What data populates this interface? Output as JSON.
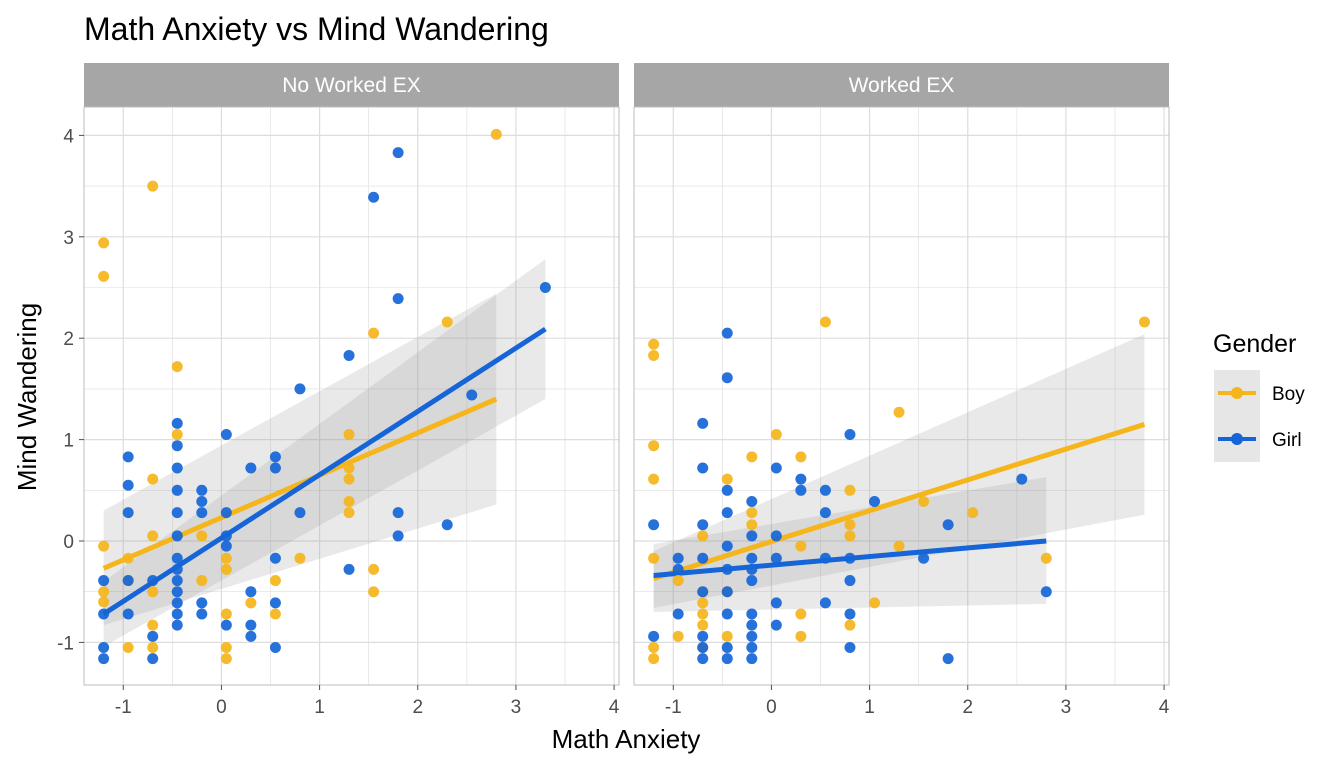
{
  "chart_data": {
    "type": "scatter",
    "title": "Math Anxiety vs Mind Wandering",
    "xlabel": "Math Anxiety",
    "ylabel": "Mind Wandering",
    "xlim": [
      -1.4,
      4.05
    ],
    "ylim": [
      -1.42,
      4.28
    ],
    "x_ticks": [
      -1,
      0,
      1,
      2,
      3,
      4
    ],
    "x_tick_labels": [
      "-1",
      "0",
      "1",
      "2",
      "3",
      "4"
    ],
    "y_ticks": [
      -1,
      0,
      1,
      2,
      3,
      4
    ],
    "y_tick_labels": [
      "-1",
      "0",
      "1",
      "2",
      "3",
      "4"
    ],
    "grid": true,
    "legend": {
      "title": "Gender",
      "position": "right",
      "entries": [
        {
          "label": "Boy",
          "color": "#F5B51B"
        },
        {
          "label": "Girl",
          "color": "#1565D8"
        }
      ]
    },
    "colors": {
      "Boy": "#F5B51B",
      "Girl": "#1565D8",
      "ribbon": "#999999",
      "strip": "#A6A6A6",
      "grid": "#DDDDDD"
    },
    "panels": [
      {
        "strip": "No Worked EX",
        "series": [
          {
            "name": "Boy",
            "points": [
              [
                -1.2,
                2.94
              ],
              [
                -1.2,
                2.61
              ],
              [
                -1.2,
                -0.05
              ],
              [
                -1.2,
                -0.5
              ],
              [
                -1.2,
                -0.6
              ],
              [
                -0.95,
                -0.17
              ],
              [
                -0.95,
                -0.39
              ],
              [
                -0.95,
                -1.05
              ],
              [
                -0.7,
                3.5
              ],
              [
                -0.7,
                0.61
              ],
              [
                -0.7,
                0.05
              ],
              [
                -0.7,
                -0.5
              ],
              [
                -0.7,
                -0.83
              ],
              [
                -0.7,
                -1.05
              ],
              [
                -0.45,
                1.72
              ],
              [
                -0.45,
                1.05
              ],
              [
                -0.2,
                -0.39
              ],
              [
                -0.2,
                0.05
              ],
              [
                0.05,
                -0.17
              ],
              [
                0.05,
                -0.28
              ],
              [
                0.05,
                -0.72
              ],
              [
                0.05,
                -1.05
              ],
              [
                0.05,
                -1.16
              ],
              [
                0.3,
                -0.61
              ],
              [
                0.55,
                -0.39
              ],
              [
                0.55,
                -0.72
              ],
              [
                0.8,
                -0.17
              ],
              [
                1.3,
                1.05
              ],
              [
                1.3,
                0.72
              ],
              [
                1.3,
                0.61
              ],
              [
                1.3,
                0.39
              ],
              [
                1.3,
                0.28
              ],
              [
                1.55,
                2.05
              ],
              [
                1.55,
                -0.28
              ],
              [
                1.55,
                -0.5
              ],
              [
                2.3,
                2.16
              ],
              [
                2.8,
                4.01
              ]
            ],
            "fit": {
              "x": [
                -1.2,
                2.8
              ],
              "y": [
                -0.27,
                1.4
              ]
            },
            "band": {
              "x": [
                -1.2,
                2.8
              ],
              "upper": [
                0.3,
                2.44
              ],
              "lower": [
                -0.83,
                0.36
              ]
            }
          },
          {
            "name": "Girl",
            "points": [
              [
                -1.2,
                -0.39
              ],
              [
                -1.2,
                -0.72
              ],
              [
                -1.2,
                -1.05
              ],
              [
                -1.2,
                -1.16
              ],
              [
                -0.95,
                0.83
              ],
              [
                -0.95,
                0.55
              ],
              [
                -0.95,
                0.28
              ],
              [
                -0.95,
                -0.39
              ],
              [
                -0.95,
                -0.72
              ],
              [
                -0.7,
                -0.39
              ],
              [
                -0.7,
                -0.94
              ],
              [
                -0.7,
                -1.16
              ],
              [
                -0.45,
                1.16
              ],
              [
                -0.45,
                0.94
              ],
              [
                -0.45,
                0.72
              ],
              [
                -0.45,
                0.5
              ],
              [
                -0.45,
                0.28
              ],
              [
                -0.45,
                0.05
              ],
              [
                -0.45,
                -0.17
              ],
              [
                -0.45,
                -0.28
              ],
              [
                -0.45,
                -0.39
              ],
              [
                -0.45,
                -0.5
              ],
              [
                -0.45,
                -0.61
              ],
              [
                -0.45,
                -0.72
              ],
              [
                -0.45,
                -0.83
              ],
              [
                -0.2,
                0.5
              ],
              [
                -0.2,
                0.39
              ],
              [
                -0.2,
                0.28
              ],
              [
                -0.2,
                -0.61
              ],
              [
                -0.2,
                -0.72
              ],
              [
                0.05,
                1.05
              ],
              [
                0.05,
                0.28
              ],
              [
                0.05,
                0.05
              ],
              [
                0.05,
                -0.05
              ],
              [
                0.05,
                -0.83
              ],
              [
                0.3,
                0.72
              ],
              [
                0.3,
                -0.5
              ],
              [
                0.3,
                -0.83
              ],
              [
                0.3,
                -0.94
              ],
              [
                0.55,
                0.83
              ],
              [
                0.55,
                0.72
              ],
              [
                0.55,
                -0.17
              ],
              [
                0.55,
                -0.61
              ],
              [
                0.55,
                -1.05
              ],
              [
                0.8,
                1.5
              ],
              [
                0.8,
                0.28
              ],
              [
                1.3,
                1.83
              ],
              [
                1.3,
                -0.28
              ],
              [
                1.55,
                3.39
              ],
              [
                1.8,
                3.83
              ],
              [
                1.8,
                2.39
              ],
              [
                1.8,
                0.28
              ],
              [
                1.8,
                0.05
              ],
              [
                2.3,
                0.16
              ],
              [
                2.55,
                1.44
              ],
              [
                3.3,
                2.5
              ]
            ],
            "fit": {
              "x": [
                -1.2,
                3.3
              ],
              "y": [
                -0.72,
                2.09
              ]
            },
            "band": {
              "x": [
                -1.2,
                3.3
              ],
              "upper": [
                -0.4,
                2.78
              ],
              "lower": [
                -1.04,
                1.4
              ]
            }
          }
        ]
      },
      {
        "strip": "Worked EX",
        "series": [
          {
            "name": "Boy",
            "points": [
              [
                -1.2,
                1.94
              ],
              [
                -1.2,
                1.83
              ],
              [
                -1.2,
                0.94
              ],
              [
                -1.2,
                0.61
              ],
              [
                -1.2,
                -0.17
              ],
              [
                -1.2,
                -1.05
              ],
              [
                -1.2,
                -1.16
              ],
              [
                -0.95,
                -0.39
              ],
              [
                -0.95,
                -0.94
              ],
              [
                -0.7,
                0.05
              ],
              [
                -0.7,
                -0.5
              ],
              [
                -0.7,
                -0.61
              ],
              [
                -0.7,
                -0.72
              ],
              [
                -0.7,
                -0.83
              ],
              [
                -0.7,
                -1.05
              ],
              [
                -0.45,
                0.61
              ],
              [
                -0.45,
                -0.5
              ],
              [
                -0.45,
                -0.94
              ],
              [
                -0.2,
                0.83
              ],
              [
                -0.2,
                0.28
              ],
              [
                -0.2,
                0.16
              ],
              [
                0.05,
                1.05
              ],
              [
                0.3,
                0.83
              ],
              [
                0.3,
                -0.05
              ],
              [
                0.3,
                -0.72
              ],
              [
                0.3,
                -0.94
              ],
              [
                0.55,
                2.16
              ],
              [
                0.8,
                0.5
              ],
              [
                0.8,
                0.16
              ],
              [
                0.8,
                0.05
              ],
              [
                0.8,
                -0.83
              ],
              [
                1.05,
                -0.61
              ],
              [
                1.3,
                1.27
              ],
              [
                1.3,
                -0.05
              ],
              [
                1.55,
                0.39
              ],
              [
                2.05,
                0.28
              ],
              [
                2.8,
                -0.17
              ],
              [
                3.8,
                2.16
              ]
            ],
            "fit": {
              "x": [
                -1.2,
                3.8
              ],
              "y": [
                -0.37,
                1.15
              ]
            },
            "band": {
              "x": [
                -1.2,
                3.8
              ],
              "upper": [
                -0.1,
                2.04
              ],
              "lower": [
                -0.66,
                0.26
              ]
            }
          },
          {
            "name": "Girl",
            "points": [
              [
                -1.2,
                0.16
              ],
              [
                -1.2,
                -0.94
              ],
              [
                -0.95,
                -0.17
              ],
              [
                -0.95,
                -0.28
              ],
              [
                -0.95,
                -0.72
              ],
              [
                -0.7,
                1.16
              ],
              [
                -0.7,
                0.72
              ],
              [
                -0.7,
                0.16
              ],
              [
                -0.7,
                -0.17
              ],
              [
                -0.7,
                -0.5
              ],
              [
                -0.7,
                -0.94
              ],
              [
                -0.7,
                -1.05
              ],
              [
                -0.7,
                -1.16
              ],
              [
                -0.45,
                2.05
              ],
              [
                -0.45,
                1.61
              ],
              [
                -0.45,
                0.5
              ],
              [
                -0.45,
                0.28
              ],
              [
                -0.45,
                -0.05
              ],
              [
                -0.45,
                -0.28
              ],
              [
                -0.45,
                -0.5
              ],
              [
                -0.45,
                -0.72
              ],
              [
                -0.45,
                -1.05
              ],
              [
                -0.45,
                -1.16
              ],
              [
                -0.2,
                0.39
              ],
              [
                -0.2,
                0.05
              ],
              [
                -0.2,
                -0.17
              ],
              [
                -0.2,
                -0.28
              ],
              [
                -0.2,
                -0.39
              ],
              [
                -0.2,
                -0.72
              ],
              [
                -0.2,
                -0.83
              ],
              [
                -0.2,
                -0.94
              ],
              [
                -0.2,
                -1.05
              ],
              [
                -0.2,
                -1.16
              ],
              [
                0.05,
                0.72
              ],
              [
                0.05,
                0.05
              ],
              [
                0.05,
                -0.17
              ],
              [
                0.05,
                -0.61
              ],
              [
                0.05,
                -0.83
              ],
              [
                0.3,
                0.61
              ],
              [
                0.3,
                0.5
              ],
              [
                0.55,
                0.5
              ],
              [
                0.55,
                0.28
              ],
              [
                0.55,
                -0.17
              ],
              [
                0.55,
                -0.61
              ],
              [
                0.8,
                1.05
              ],
              [
                0.8,
                -0.17
              ],
              [
                0.8,
                -0.39
              ],
              [
                0.8,
                -0.72
              ],
              [
                0.8,
                -1.05
              ],
              [
                1.05,
                0.39
              ],
              [
                1.55,
                -0.17
              ],
              [
                1.8,
                0.16
              ],
              [
                1.8,
                -1.16
              ],
              [
                2.55,
                0.61
              ],
              [
                2.8,
                -0.5
              ]
            ],
            "fit": {
              "x": [
                -1.2,
                2.8
              ],
              "y": [
                -0.34,
                0.0
              ]
            },
            "band": {
              "x": [
                -1.2,
                2.8
              ],
              "upper": [
                -0.03,
                0.63
              ],
              "lower": [
                -0.7,
                -0.62
              ]
            }
          }
        ]
      }
    ]
  }
}
